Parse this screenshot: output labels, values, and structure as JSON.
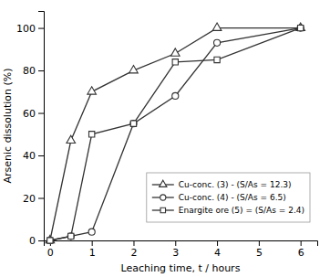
{
  "chart_data": {
    "type": "line",
    "xlabel": "Leaching time, t / hours",
    "ylabel": "Arsenic dissolution (%)",
    "x": [
      0,
      0.5,
      1,
      2,
      3,
      4,
      6
    ],
    "series": [
      {
        "name": "Cu-conc. (3) - (S/As = 12.3)",
        "color": "#333333",
        "marker": "triangle",
        "line_style": "solid",
        "values": [
          0,
          47,
          70,
          80,
          88,
          100,
          100
        ]
      },
      {
        "name": "Cu-conc. (4) - (S/As = 6.5)",
        "color": "#333333",
        "marker": "circle",
        "line_style": "solid",
        "values": [
          0,
          2,
          4,
          55,
          68,
          93,
          100
        ]
      },
      {
        "name": "Enargite ore (5) = (S/As = 2.4)",
        "color": "#333333",
        "marker": "square",
        "line_style": "solid",
        "values": [
          0,
          2,
          50,
          55,
          84,
          85,
          100
        ]
      }
    ],
    "xlim": [
      -0.15,
      6.4
    ],
    "ylim": [
      0,
      108
    ],
    "xticks": [
      0,
      1,
      2,
      3,
      4,
      5,
      6
    ],
    "yticks": [
      0,
      20,
      40,
      60,
      80,
      100
    ],
    "grid": false,
    "legend": "lower right"
  }
}
